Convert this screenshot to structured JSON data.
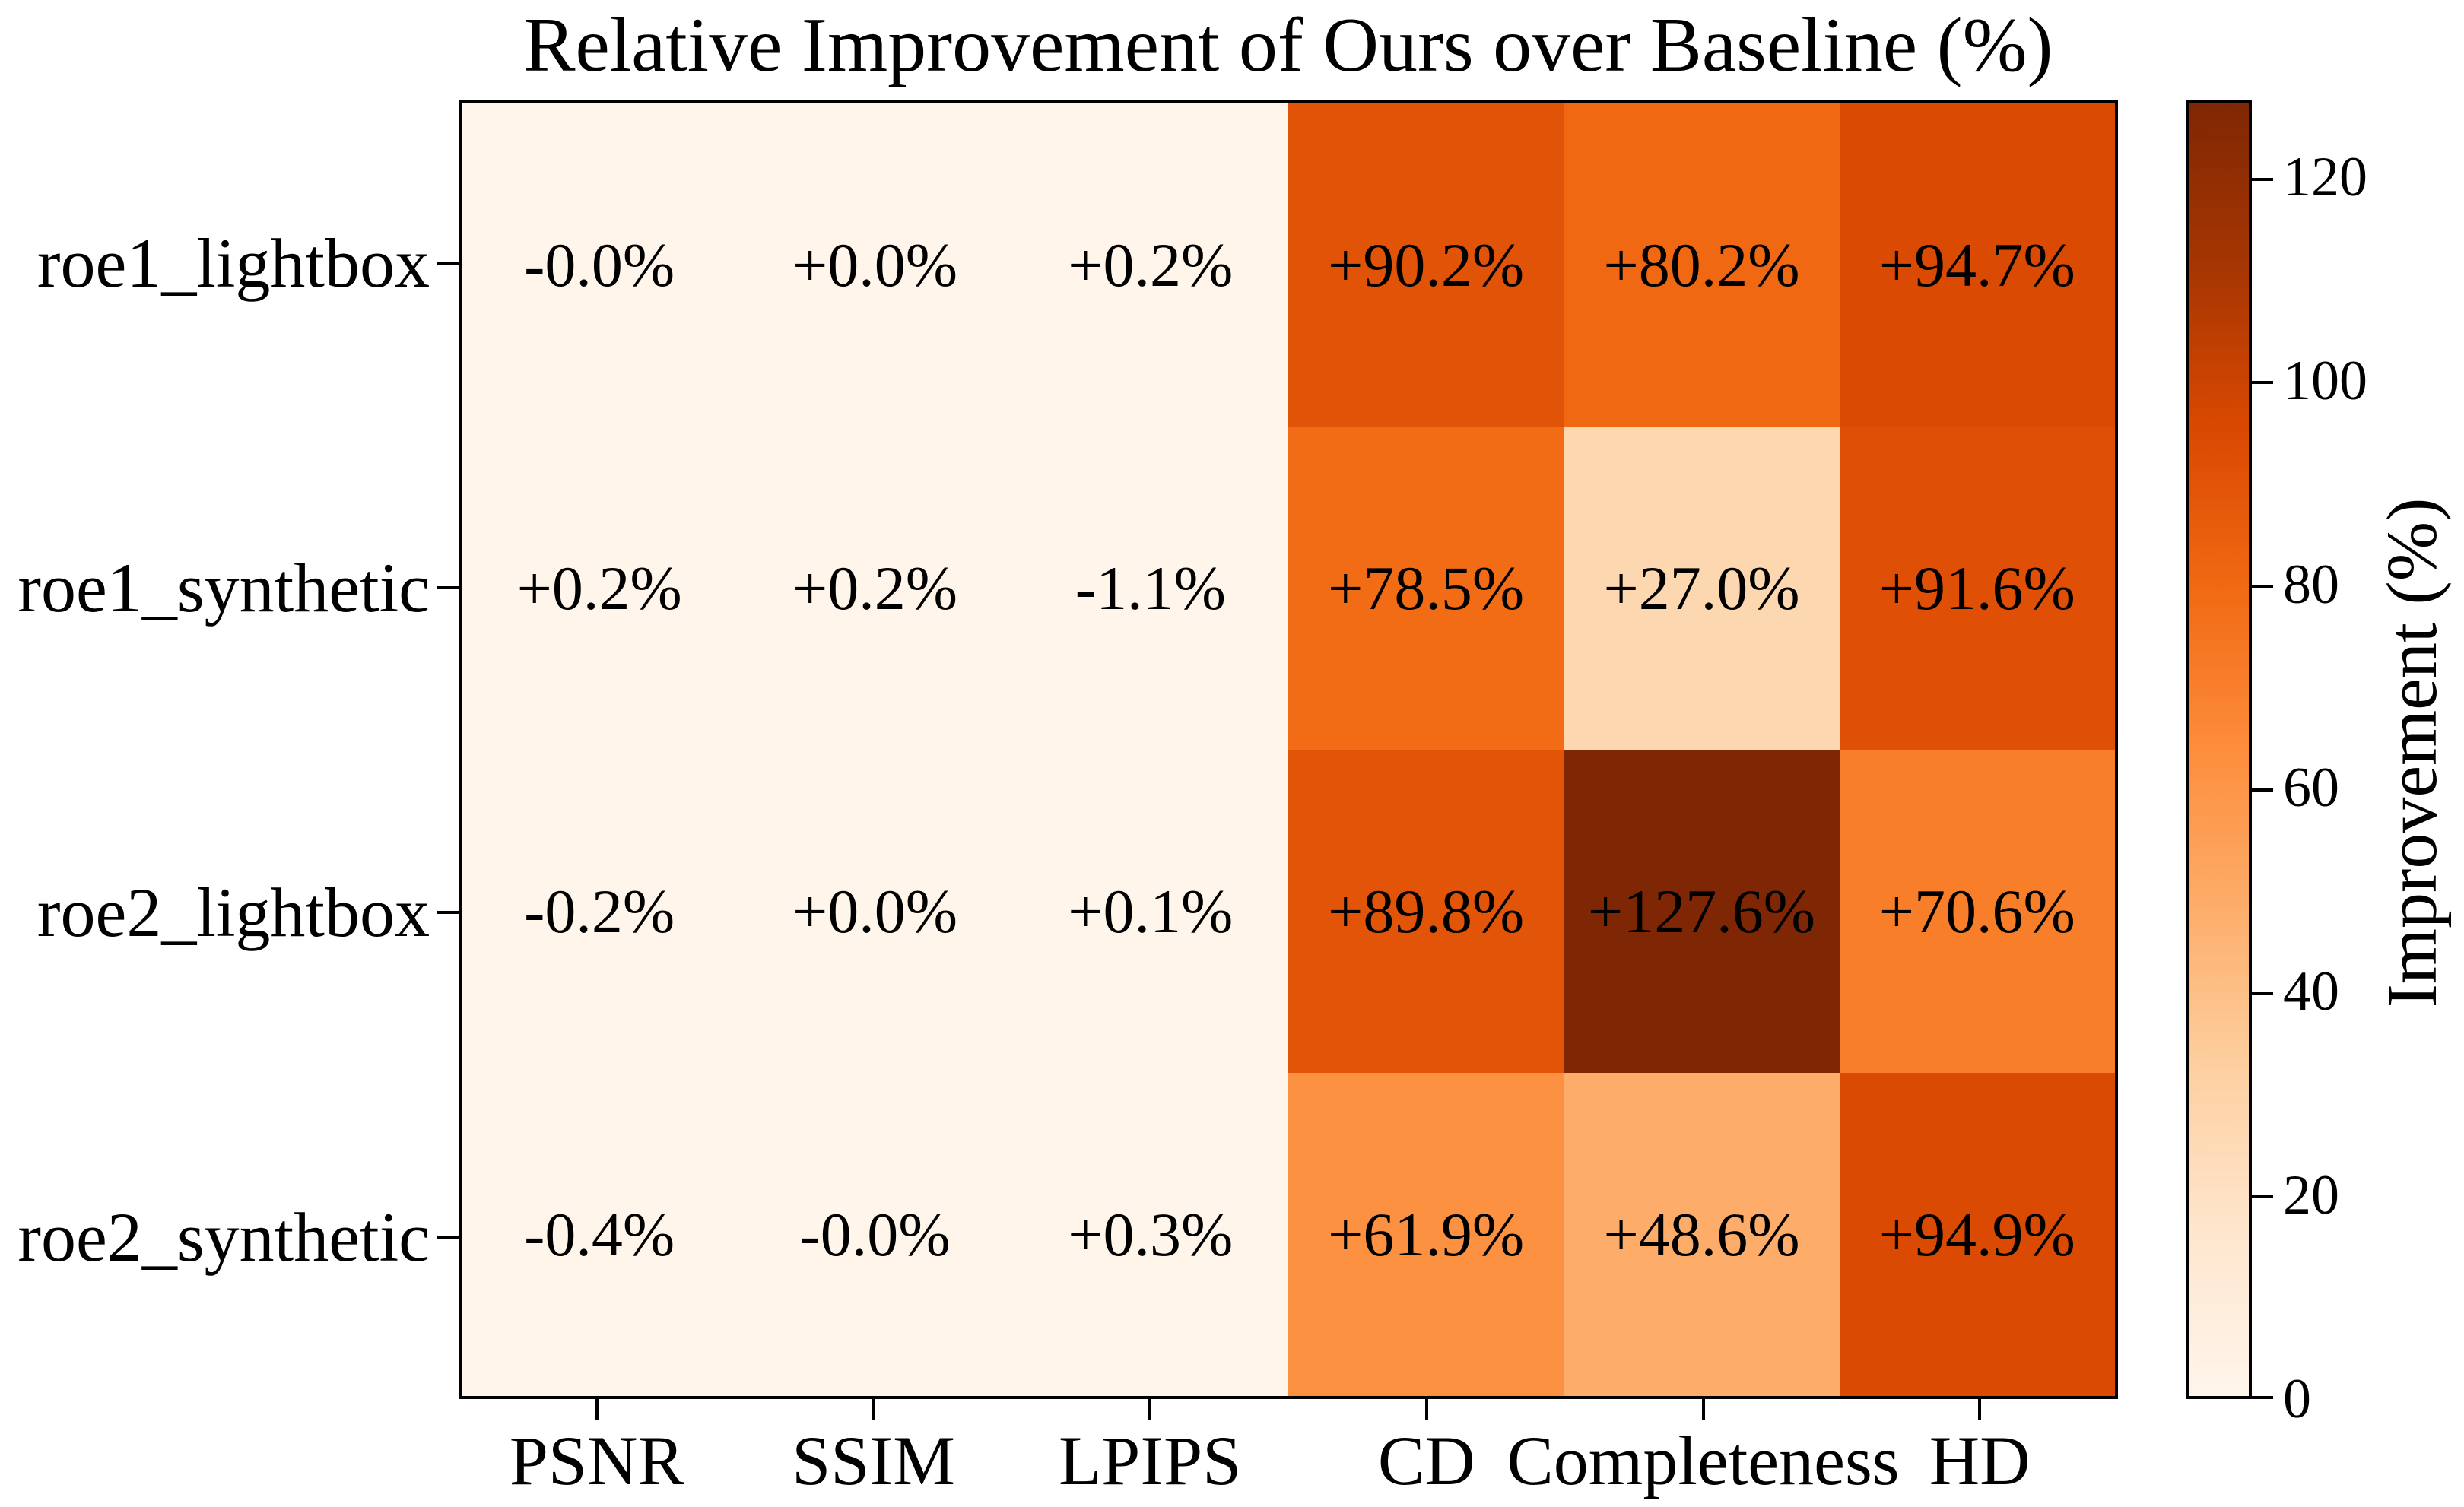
{
  "title": "Relative Improvement of Ours over Baseline (%)",
  "chart_data": {
    "type": "heatmap",
    "title": "Relative Improvement of Ours over Baseline (%)",
    "rows": [
      "roe1_lightbox",
      "roe1_synthetic",
      "roe2_lightbox",
      "roe2_synthetic"
    ],
    "columns": [
      "PSNR",
      "SSIM",
      "LPIPS",
      "CD",
      "Completeness",
      "HD"
    ],
    "cell_values": [
      [
        -0.0,
        0.0,
        0.2,
        90.2,
        80.2,
        94.7
      ],
      [
        0.2,
        0.2,
        -1.1,
        78.5,
        27.0,
        91.6
      ],
      [
        -0.2,
        0.0,
        0.1,
        89.8,
        127.6,
        70.6
      ],
      [
        -0.4,
        -0.0,
        0.3,
        61.9,
        48.6,
        94.9
      ]
    ],
    "cell_labels": [
      [
        "-0.0%",
        "+0.0%",
        "+0.2%",
        "+90.2%",
        "+80.2%",
        "+94.7%"
      ],
      [
        "+0.2%",
        "+0.2%",
        "-1.1%",
        "+78.5%",
        "+27.0%",
        "+91.6%"
      ],
      [
        "-0.2%",
        "+0.0%",
        "+0.1%",
        "+89.8%",
        "+127.6%",
        "+70.6%"
      ],
      [
        "-0.4%",
        "-0.0%",
        "+0.3%",
        "+61.9%",
        "+48.6%",
        "+94.9%"
      ]
    ],
    "cell_colors": [
      [
        "#fff5eb",
        "#fff5eb",
        "#fff5eb",
        "#e15307",
        "#f06812",
        "#da4a02"
      ],
      [
        "#fff5eb",
        "#fff5eb",
        "#fff5eb",
        "#f26c16",
        "#fdd7af",
        "#df5006"
      ],
      [
        "#fff5eb",
        "#fff5eb",
        "#fff5eb",
        "#e25408",
        "#7f2704",
        "#f87e2a"
      ],
      [
        "#fff5eb",
        "#fff5eb",
        "#fff5eb",
        "#fd9142",
        "#fdac69",
        "#da4a02"
      ]
    ],
    "annotation_text_color": "#000000",
    "colormap": "Oranges",
    "vmin": 0,
    "vmax": 127.6,
    "grid": false,
    "colorbar": {
      "label": "Improvement (%)",
      "tick_labels": [
        "0",
        "20",
        "40",
        "60",
        "80",
        "100",
        "120"
      ],
      "tick_values": [
        0,
        20,
        40,
        60,
        80,
        100,
        120
      ],
      "gradient_stops": [
        {
          "pos": 0.0,
          "color": "#fff5eb"
        },
        {
          "pos": 0.125,
          "color": "#fee6ce"
        },
        {
          "pos": 0.25,
          "color": "#fdd0a2"
        },
        {
          "pos": 0.375,
          "color": "#fdae6b"
        },
        {
          "pos": 0.5,
          "color": "#fd8d3c"
        },
        {
          "pos": 0.625,
          "color": "#f16913"
        },
        {
          "pos": 0.75,
          "color": "#d94801"
        },
        {
          "pos": 0.875,
          "color": "#a63603"
        },
        {
          "pos": 1.0,
          "color": "#7f2704"
        }
      ]
    },
    "axis_color": "#000000",
    "background_color": "#ffffff"
  }
}
